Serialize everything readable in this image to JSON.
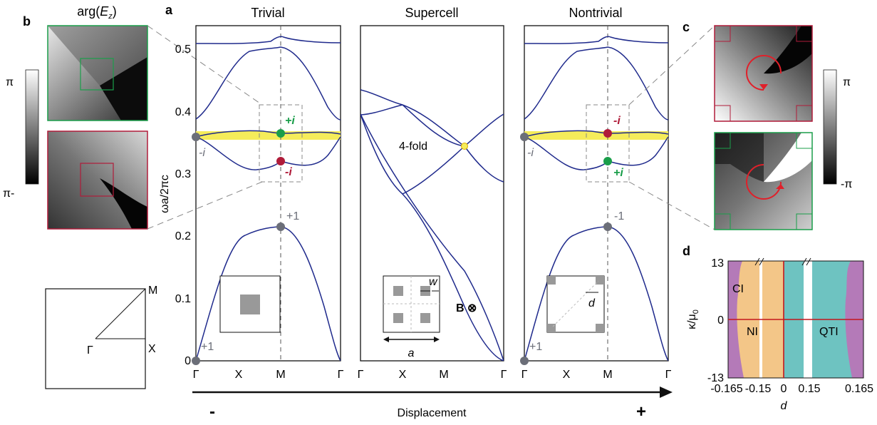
{
  "panel_letters": {
    "a": "a",
    "b": "b",
    "c": "c",
    "d": "d"
  },
  "panel_b": {
    "title_prefix": "arg(",
    "title_var": "E",
    "title_sub": "z",
    "title_suffix": ")",
    "colorbar_top": "π",
    "colorbar_bottom": "π-"
  },
  "panel_c": {
    "colorbar_top": "π",
    "colorbar_bottom": "-π"
  },
  "bz": {
    "gamma": "Γ",
    "x": "X",
    "m": "M"
  },
  "panel_a": {
    "titles": [
      "Trivial",
      "Supercell",
      "Nontrivial"
    ],
    "ylabel": "ωa/2πc",
    "yticks": [
      "0",
      "0.1",
      "0.2",
      "0.3",
      "0.4",
      "0.5"
    ],
    "xticks": [
      "Γ",
      "X",
      "M",
      "Γ"
    ],
    "trivial_labels": {
      "top": "+i",
      "mid": "-i",
      "gamma": "-i",
      "m_low": "+1",
      "gamma_low": "+1"
    },
    "supercell_labels": {
      "fourfold": "4-fold",
      "bfield": "B ⊗",
      "a": "a",
      "w": "w"
    },
    "nontrivial_labels": {
      "top": "-i",
      "mid": "+i",
      "gamma": "-i",
      "m_low": "-1",
      "gamma_low": "+1",
      "d": "d"
    }
  },
  "displacement": {
    "label": "Displacement",
    "minus": "-",
    "plus": "+"
  },
  "panel_d": {
    "ylabel": "κ/μ",
    "ylabel_sub": "0",
    "xlabel": "d",
    "yticks": [
      "13",
      "0",
      "-13"
    ],
    "xticks": [
      "-0.165",
      "-0.15",
      "0",
      "0.15",
      "0.165"
    ],
    "regions": [
      "CI",
      "NI",
      "QTI"
    ]
  },
  "colors": {
    "band": "#1f2a8c",
    "highlight": "#f5ec5a",
    "green": "#1a9e4a",
    "red": "#b01c3a",
    "gray_dot": "#6b6e78",
    "orange": "#f3c688",
    "teal": "#6ec3c1",
    "purple": "#b47ab8",
    "redline": "#c4161c"
  }
}
